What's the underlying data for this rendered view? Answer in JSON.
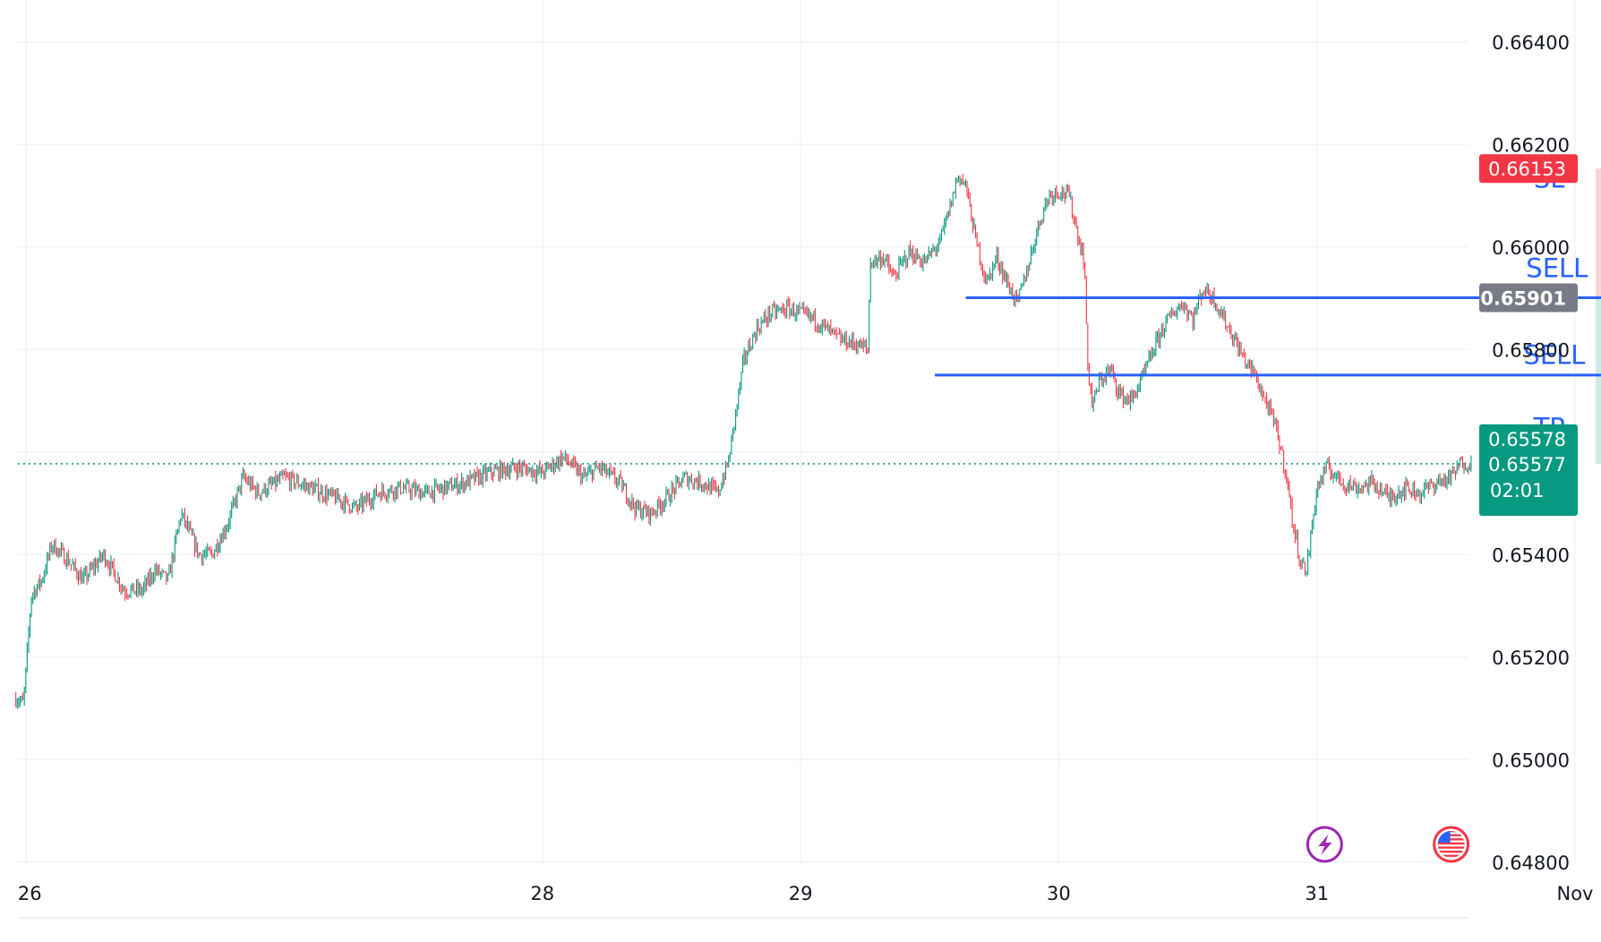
{
  "chart_data": {
    "type": "candlestick",
    "instrument_note": "",
    "x_ticks": [
      {
        "label": "26",
        "day": 26
      },
      {
        "label": "28",
        "day": 28
      },
      {
        "label": "29",
        "day": 29
      },
      {
        "label": "30",
        "day": 30
      },
      {
        "label": "31",
        "day": 31
      },
      {
        "label": "Nov",
        "day": 32
      }
    ],
    "xlim_days": [
      25.96,
      33.0
    ],
    "ylim": [
      0.6477,
      0.6651
    ],
    "y_ticks": [
      "0.66400",
      "0.66200",
      "0.66000",
      "0.65800",
      "0.65400",
      "0.65200",
      "0.65000",
      "0.64800"
    ],
    "grid": true,
    "colors": {
      "up": "#089981",
      "down": "#f23645",
      "level_line": "#2962ff",
      "stop_zone": "#f7c5c9",
      "target_zone": "#c4e6de",
      "current_price_line": "#089981",
      "sl_badge": "#f23645",
      "entry_badge": "#787b86",
      "price_badge": "#089981"
    },
    "price_path": [
      [
        25.96,
        0.6512
      ],
      [
        25.99,
        0.6511
      ],
      [
        26.02,
        0.6532
      ],
      [
        26.06,
        0.6535
      ],
      [
        26.1,
        0.6542
      ],
      [
        26.16,
        0.6539
      ],
      [
        26.22,
        0.6535
      ],
      [
        26.3,
        0.654
      ],
      [
        26.38,
        0.6533
      ],
      [
        26.45,
        0.6533
      ],
      [
        26.5,
        0.6537
      ],
      [
        26.55,
        0.6535
      ],
      [
        26.6,
        0.6548
      ],
      [
        26.67,
        0.654
      ],
      [
        26.72,
        0.654
      ],
      [
        26.78,
        0.6546
      ],
      [
        26.84,
        0.6555
      ],
      [
        26.9,
        0.6552
      ],
      [
        27.0,
        0.6555
      ],
      [
        27.1,
        0.6553
      ],
      [
        27.2,
        0.6551
      ],
      [
        27.28,
        0.6549
      ],
      [
        27.36,
        0.6552
      ],
      [
        27.45,
        0.6553
      ],
      [
        27.55,
        0.6552
      ],
      [
        27.62,
        0.6553
      ],
      [
        27.7,
        0.6554
      ],
      [
        27.8,
        0.6556
      ],
      [
        27.9,
        0.6557
      ],
      [
        28.0,
        0.6556
      ],
      [
        28.08,
        0.6559
      ],
      [
        28.16,
        0.6555
      ],
      [
        28.22,
        0.6557
      ],
      [
        28.3,
        0.6554
      ],
      [
        28.36,
        0.6549
      ],
      [
        28.42,
        0.6548
      ],
      [
        28.48,
        0.6551
      ],
      [
        28.55,
        0.6555
      ],
      [
        28.62,
        0.6554
      ],
      [
        28.68,
        0.6552
      ],
      [
        28.72,
        0.6558
      ],
      [
        28.75,
        0.6568
      ],
      [
        28.78,
        0.6578
      ],
      [
        28.83,
        0.6584
      ],
      [
        28.88,
        0.6587
      ],
      [
        28.95,
        0.6588
      ],
      [
        29.05,
        0.6586
      ],
      [
        29.15,
        0.6582
      ],
      [
        29.22,
        0.6581
      ],
      [
        29.26,
        0.658
      ],
      [
        29.27,
        0.6597
      ],
      [
        29.32,
        0.6598
      ],
      [
        29.36,
        0.6594
      ],
      [
        29.42,
        0.6599
      ],
      [
        29.48,
        0.6597
      ],
      [
        29.54,
        0.6601
      ],
      [
        29.58,
        0.6608
      ],
      [
        29.61,
        0.6614
      ],
      [
        29.64,
        0.6612
      ],
      [
        29.68,
        0.6601
      ],
      [
        29.72,
        0.6593
      ],
      [
        29.76,
        0.6598
      ],
      [
        29.8,
        0.6593
      ],
      [
        29.84,
        0.6589
      ],
      [
        29.88,
        0.6596
      ],
      [
        29.92,
        0.6604
      ],
      [
        29.96,
        0.661
      ],
      [
        30.0,
        0.6611
      ],
      [
        30.04,
        0.661
      ],
      [
        30.08,
        0.6601
      ],
      [
        30.1,
        0.6597
      ],
      [
        30.11,
        0.6578
      ],
      [
        30.13,
        0.6569
      ],
      [
        30.16,
        0.6574
      ],
      [
        30.2,
        0.6576
      ],
      [
        30.24,
        0.6571
      ],
      [
        30.28,
        0.657
      ],
      [
        30.32,
        0.6574
      ],
      [
        30.36,
        0.6579
      ],
      [
        30.4,
        0.6584
      ],
      [
        30.44,
        0.6587
      ],
      [
        30.48,
        0.6589
      ],
      [
        30.52,
        0.6586
      ],
      [
        30.56,
        0.6592
      ],
      [
        30.6,
        0.659
      ],
      [
        30.64,
        0.6586
      ],
      [
        30.68,
        0.6582
      ],
      [
        30.72,
        0.6578
      ],
      [
        30.76,
        0.6575
      ],
      [
        30.8,
        0.657
      ],
      [
        30.84,
        0.6565
      ],
      [
        30.88,
        0.6556
      ],
      [
        30.91,
        0.6545
      ],
      [
        30.94,
        0.6538
      ],
      [
        30.96,
        0.6537
      ],
      [
        31.0,
        0.6553
      ],
      [
        31.04,
        0.6557
      ],
      [
        31.1,
        0.6554
      ],
      [
        31.16,
        0.6553
      ],
      [
        31.22,
        0.6554
      ],
      [
        31.28,
        0.6551
      ],
      [
        31.34,
        0.6553
      ],
      [
        31.4,
        0.6552
      ],
      [
        31.46,
        0.6554
      ],
      [
        31.52,
        0.6555
      ],
      [
        31.56,
        0.6558
      ],
      [
        31.6,
        0.65577
      ]
    ],
    "levels": [
      {
        "name": "sell-level-upper",
        "value": 0.65901,
        "from_day": 29.64,
        "to_day": 33.31
      },
      {
        "name": "sell-level-lower",
        "value": 0.6575,
        "from_day": 29.52,
        "to_day": 33.33
      }
    ],
    "position": {
      "type": "short",
      "entry": 0.65901,
      "stop_loss": 0.66153,
      "take_profit": 0.65577,
      "from_day": 32.08,
      "to_day": 32.95
    },
    "current_price": 0.65577,
    "annotations": [
      {
        "text": "SL",
        "day": 31.9,
        "price": 0.66116
      },
      {
        "text": "SELL",
        "day": 31.93,
        "price": 0.65941
      },
      {
        "text": "SELL",
        "day": 31.92,
        "price": 0.65772
      },
      {
        "text": "TP",
        "day": 31.9,
        "price": 0.6563
      }
    ],
    "price_badges": [
      {
        "text": "0.66153",
        "price": 0.66153,
        "color": "#f23645",
        "bold": false
      },
      {
        "text": "0.65901",
        "price": 0.65901,
        "color": "#787b86",
        "bold": true
      },
      {
        "text": "0.65578",
        "price": 0.65626,
        "color": "#089981",
        "bold": false
      },
      {
        "text": "0.65577",
        "price": 0.65577,
        "color": "#089981",
        "bold": false
      }
    ],
    "countdown": "02:01",
    "event_icons": [
      {
        "name": "lightning-icon",
        "day": 31.03
      },
      {
        "name": "us-flag-icon",
        "day": 31.52
      }
    ]
  }
}
